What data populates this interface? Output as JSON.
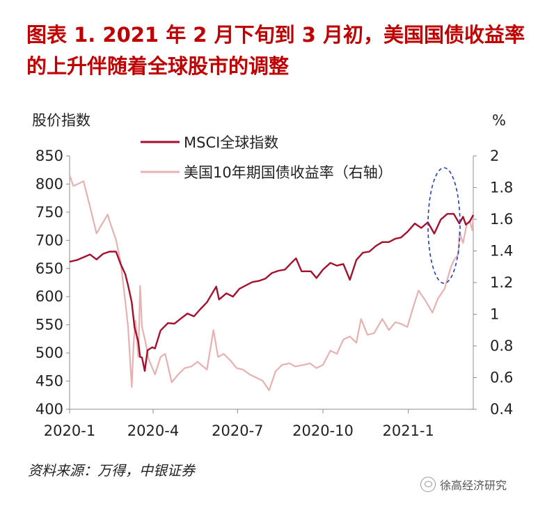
{
  "title": {
    "line1": "图表 1.  2021 年 2 月下旬到 3 月初，美国国债收益率",
    "line2": "的上升伴随着全球股市的调整"
  },
  "source": "资料来源：万得，中银证券",
  "brand": "徐高经济研究",
  "colors": {
    "msci": "#a50f2d",
    "yield": "#e8b0b0",
    "annotation": "#1f3fbf",
    "title": "#c00000"
  },
  "chart_data": {
    "type": "line",
    "ylabel_left": "股价指数",
    "ylabel_right": "%",
    "ylim_left": [
      400,
      850
    ],
    "yticks_left": [
      400,
      450,
      500,
      550,
      600,
      650,
      700,
      750,
      800,
      850
    ],
    "ylim_right": [
      0.4,
      2.0
    ],
    "yticks_right": [
      "0.4",
      "0.6",
      "0.8",
      "1",
      "1.2",
      "1.4",
      "1.6",
      "1.8",
      "2"
    ],
    "x_range": [
      "2020-01-02",
      "2021-03-12"
    ],
    "xticks": [
      {
        "date": "2020-01-02",
        "label": "2020-1"
      },
      {
        "date": "2020-04-01",
        "label": "2020-4"
      },
      {
        "date": "2020-07-01",
        "label": "2020-7"
      },
      {
        "date": "2020-10-01",
        "label": "2020-10"
      },
      {
        "date": "2021-01-01",
        "label": "2021-1"
      }
    ],
    "legend": "top",
    "annotation": "ellipse around 2021-02 to 2021-03",
    "series": [
      {
        "name": "MSCI全球指数",
        "axis": "left",
        "points": [
          [
            "2020-01-02",
            662
          ],
          [
            "2020-01-10",
            665
          ],
          [
            "2020-01-17",
            670
          ],
          [
            "2020-01-24",
            675
          ],
          [
            "2020-01-31",
            666
          ],
          [
            "2020-02-07",
            676
          ],
          [
            "2020-02-14",
            680
          ],
          [
            "2020-02-21",
            680
          ],
          [
            "2020-02-26",
            658
          ],
          [
            "2020-03-02",
            640
          ],
          [
            "2020-03-05",
            620
          ],
          [
            "2020-03-09",
            590
          ],
          [
            "2020-03-12",
            545
          ],
          [
            "2020-03-16",
            520
          ],
          [
            "2020-03-18",
            493
          ],
          [
            "2020-03-20",
            492
          ],
          [
            "2020-03-23",
            468
          ],
          [
            "2020-03-26",
            505
          ],
          [
            "2020-03-31",
            510
          ],
          [
            "2020-04-03",
            508
          ],
          [
            "2020-04-09",
            540
          ],
          [
            "2020-04-17",
            553
          ],
          [
            "2020-04-24",
            552
          ],
          [
            "2020-04-30",
            560
          ],
          [
            "2020-05-08",
            570
          ],
          [
            "2020-05-15",
            565
          ],
          [
            "2020-05-22",
            578
          ],
          [
            "2020-05-29",
            590
          ],
          [
            "2020-06-08",
            618
          ],
          [
            "2020-06-11",
            595
          ],
          [
            "2020-06-19",
            606
          ],
          [
            "2020-06-26",
            600
          ],
          [
            "2020-07-03",
            614
          ],
          [
            "2020-07-10",
            620
          ],
          [
            "2020-07-17",
            626
          ],
          [
            "2020-07-24",
            628
          ],
          [
            "2020-07-31",
            632
          ],
          [
            "2020-08-07",
            642
          ],
          [
            "2020-08-14",
            646
          ],
          [
            "2020-08-21",
            648
          ],
          [
            "2020-08-28",
            660
          ],
          [
            "2020-09-02",
            668
          ],
          [
            "2020-09-08",
            645
          ],
          [
            "2020-09-18",
            645
          ],
          [
            "2020-09-24",
            633
          ],
          [
            "2020-10-01",
            648
          ],
          [
            "2020-10-09",
            660
          ],
          [
            "2020-10-16",
            655
          ],
          [
            "2020-10-23",
            658
          ],
          [
            "2020-10-30",
            630
          ],
          [
            "2020-11-06",
            665
          ],
          [
            "2020-11-13",
            678
          ],
          [
            "2020-11-20",
            680
          ],
          [
            "2020-11-27",
            690
          ],
          [
            "2020-12-04",
            697
          ],
          [
            "2020-12-11",
            697
          ],
          [
            "2020-12-18",
            703
          ],
          [
            "2020-12-24",
            705
          ],
          [
            "2020-12-31",
            715
          ],
          [
            "2021-01-08",
            730
          ],
          [
            "2021-01-15",
            722
          ],
          [
            "2021-01-22",
            732
          ],
          [
            "2021-01-29",
            712
          ],
          [
            "2021-02-05",
            737
          ],
          [
            "2021-02-12",
            747
          ],
          [
            "2021-02-19",
            747
          ],
          [
            "2021-02-25",
            730
          ],
          [
            "2021-03-01",
            742
          ],
          [
            "2021-03-04",
            728
          ],
          [
            "2021-03-08",
            733
          ],
          [
            "2021-03-12",
            745
          ]
        ]
      },
      {
        "name": "美国10年期国债收益率（右轴）",
        "axis": "right",
        "points": [
          [
            "2020-01-02",
            1.88
          ],
          [
            "2020-01-06",
            1.81
          ],
          [
            "2020-01-10",
            1.82
          ],
          [
            "2020-01-17",
            1.84
          ],
          [
            "2020-01-24",
            1.68
          ],
          [
            "2020-01-31",
            1.51
          ],
          [
            "2020-02-07",
            1.58
          ],
          [
            "2020-02-12",
            1.63
          ],
          [
            "2020-02-14",
            1.59
          ],
          [
            "2020-02-21",
            1.47
          ],
          [
            "2020-02-26",
            1.33
          ],
          [
            "2020-03-02",
            1.08
          ],
          [
            "2020-03-05",
            0.92
          ],
          [
            "2020-03-09",
            0.54
          ],
          [
            "2020-03-11",
            0.82
          ],
          [
            "2020-03-13",
            0.96
          ],
          [
            "2020-03-16",
            0.73
          ],
          [
            "2020-03-18",
            1.18
          ],
          [
            "2020-03-20",
            0.92
          ],
          [
            "2020-03-24",
            0.82
          ],
          [
            "2020-03-27",
            0.72
          ],
          [
            "2020-04-03",
            0.62
          ],
          [
            "2020-04-09",
            0.73
          ],
          [
            "2020-04-14",
            0.75
          ],
          [
            "2020-04-21",
            0.57
          ],
          [
            "2020-04-28",
            0.62
          ],
          [
            "2020-05-05",
            0.66
          ],
          [
            "2020-05-12",
            0.67
          ],
          [
            "2020-05-19",
            0.7
          ],
          [
            "2020-05-29",
            0.65
          ],
          [
            "2020-06-05",
            0.9
          ],
          [
            "2020-06-10",
            0.73
          ],
          [
            "2020-06-16",
            0.75
          ],
          [
            "2020-06-23",
            0.71
          ],
          [
            "2020-06-30",
            0.66
          ],
          [
            "2020-07-07",
            0.65
          ],
          [
            "2020-07-14",
            0.62
          ],
          [
            "2020-07-21",
            0.6
          ],
          [
            "2020-07-28",
            0.58
          ],
          [
            "2020-08-04",
            0.52
          ],
          [
            "2020-08-11",
            0.64
          ],
          [
            "2020-08-18",
            0.68
          ],
          [
            "2020-08-26",
            0.69
          ],
          [
            "2020-09-01",
            0.67
          ],
          [
            "2020-09-10",
            0.68
          ],
          [
            "2020-09-17",
            0.69
          ],
          [
            "2020-09-24",
            0.66
          ],
          [
            "2020-10-01",
            0.68
          ],
          [
            "2020-10-09",
            0.77
          ],
          [
            "2020-10-16",
            0.75
          ],
          [
            "2020-10-23",
            0.84
          ],
          [
            "2020-10-30",
            0.86
          ],
          [
            "2020-11-06",
            0.82
          ],
          [
            "2020-11-11",
            0.97
          ],
          [
            "2020-11-18",
            0.87
          ],
          [
            "2020-11-25",
            0.88
          ],
          [
            "2020-12-04",
            0.97
          ],
          [
            "2020-12-11",
            0.9
          ],
          [
            "2020-12-18",
            0.95
          ],
          [
            "2020-12-24",
            0.94
          ],
          [
            "2020-12-31",
            0.92
          ],
          [
            "2021-01-06",
            1.04
          ],
          [
            "2021-01-12",
            1.15
          ],
          [
            "2021-01-19",
            1.09
          ],
          [
            "2021-01-27",
            1.01
          ],
          [
            "2021-02-02",
            1.1
          ],
          [
            "2021-02-09",
            1.16
          ],
          [
            "2021-02-16",
            1.3
          ],
          [
            "2021-02-19",
            1.34
          ],
          [
            "2021-02-24",
            1.38
          ],
          [
            "2021-02-25",
            1.52
          ],
          [
            "2021-03-01",
            1.45
          ],
          [
            "2021-03-05",
            1.57
          ],
          [
            "2021-03-08",
            1.59
          ],
          [
            "2021-03-11",
            1.53
          ],
          [
            "2021-03-12",
            1.63
          ]
        ]
      }
    ]
  }
}
